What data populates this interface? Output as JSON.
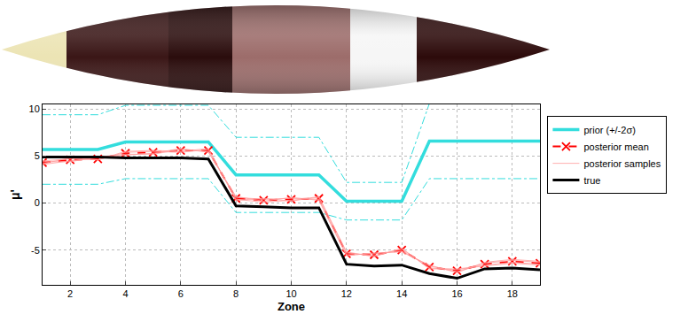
{
  "chart_data": {
    "type": "line",
    "x_label": "Zone",
    "y_label": "μ'",
    "x": [
      1,
      2,
      3,
      4,
      5,
      6,
      7,
      8,
      9,
      10,
      11,
      12,
      13,
      14,
      15,
      16,
      17,
      18,
      19
    ],
    "xlim": [
      1,
      19
    ],
    "xticks": [
      2,
      4,
      6,
      8,
      10,
      12,
      14,
      16,
      18
    ],
    "ylim": [
      -8.7,
      10.5
    ],
    "yticks": [
      -5,
      0,
      5,
      10
    ],
    "grid": true,
    "legend": "right",
    "series": [
      {
        "name": "prior (+/-2σ)",
        "color": "#33dddd",
        "line_style": "solid",
        "values": [
          5.7,
          5.7,
          5.7,
          6.5,
          6.5,
          6.5,
          6.5,
          3.0,
          3.0,
          3.0,
          3.0,
          0.2,
          0.2,
          0.2,
          6.6,
          6.6,
          6.6,
          6.6,
          6.6
        ],
        "lower": [
          2.0,
          2.0,
          2.0,
          2.6,
          2.6,
          2.6,
          2.6,
          -1.0,
          -1.0,
          -1.0,
          -1.0,
          -1.8,
          -1.8,
          -1.8,
          2.6,
          2.6,
          2.6,
          2.6,
          2.6
        ],
        "upper": [
          9.4,
          9.4,
          9.4,
          10.4,
          10.4,
          10.4,
          10.4,
          7.0,
          7.0,
          7.0,
          7.0,
          2.2,
          2.2,
          2.2,
          10.6,
          10.6,
          10.6,
          10.6,
          10.6
        ]
      },
      {
        "name": "posterior mean",
        "color": "#ff0000",
        "line_style": "dashed",
        "marker": "x",
        "values": [
          4.3,
          4.6,
          4.7,
          5.3,
          5.4,
          5.6,
          5.6,
          0.5,
          0.3,
          0.4,
          0.5,
          -5.4,
          -5.5,
          -5.0,
          -6.8,
          -7.2,
          -6.5,
          -6.2,
          -6.4
        ]
      },
      {
        "name": "posterior samples",
        "color": "#ff9999",
        "line_style": "solid",
        "samples": [
          [
            4.1,
            4.5,
            4.8,
            5.1,
            5.3,
            5.8,
            5.4,
            0.7,
            0.2,
            0.6,
            0.3,
            -5.6,
            -5.3,
            -5.2,
            -6.6,
            -7.4,
            -6.3,
            -6.0,
            -6.2
          ],
          [
            4.5,
            4.7,
            4.6,
            5.5,
            5.6,
            5.5,
            5.8,
            0.3,
            0.5,
            0.2,
            0.7,
            -5.2,
            -5.7,
            -4.8,
            -7.0,
            -7.0,
            -6.7,
            -6.4,
            -6.6
          ],
          [
            4.4,
            4.4,
            4.9,
            5.2,
            5.2,
            5.7,
            5.5,
            0.6,
            0.4,
            0.5,
            0.4,
            -5.5,
            -5.4,
            -5.1,
            -6.7,
            -7.3,
            -6.4,
            -6.1,
            -6.3
          ],
          [
            4.2,
            4.8,
            4.6,
            5.4,
            5.5,
            5.4,
            5.7,
            0.4,
            0.1,
            0.3,
            0.6,
            -5.3,
            -5.6,
            -4.9,
            -6.9,
            -7.1,
            -6.6,
            -6.3,
            -6.5
          ]
        ]
      },
      {
        "name": "true",
        "color": "#000000",
        "line_style": "solid",
        "values": [
          4.9,
          4.9,
          4.9,
          4.8,
          4.8,
          4.8,
          4.7,
          -0.3,
          -0.4,
          -0.5,
          -0.5,
          -6.5,
          -6.7,
          -6.6,
          -7.5,
          -8.0,
          -7.0,
          -6.9,
          -7.1
        ]
      }
    ]
  }
}
